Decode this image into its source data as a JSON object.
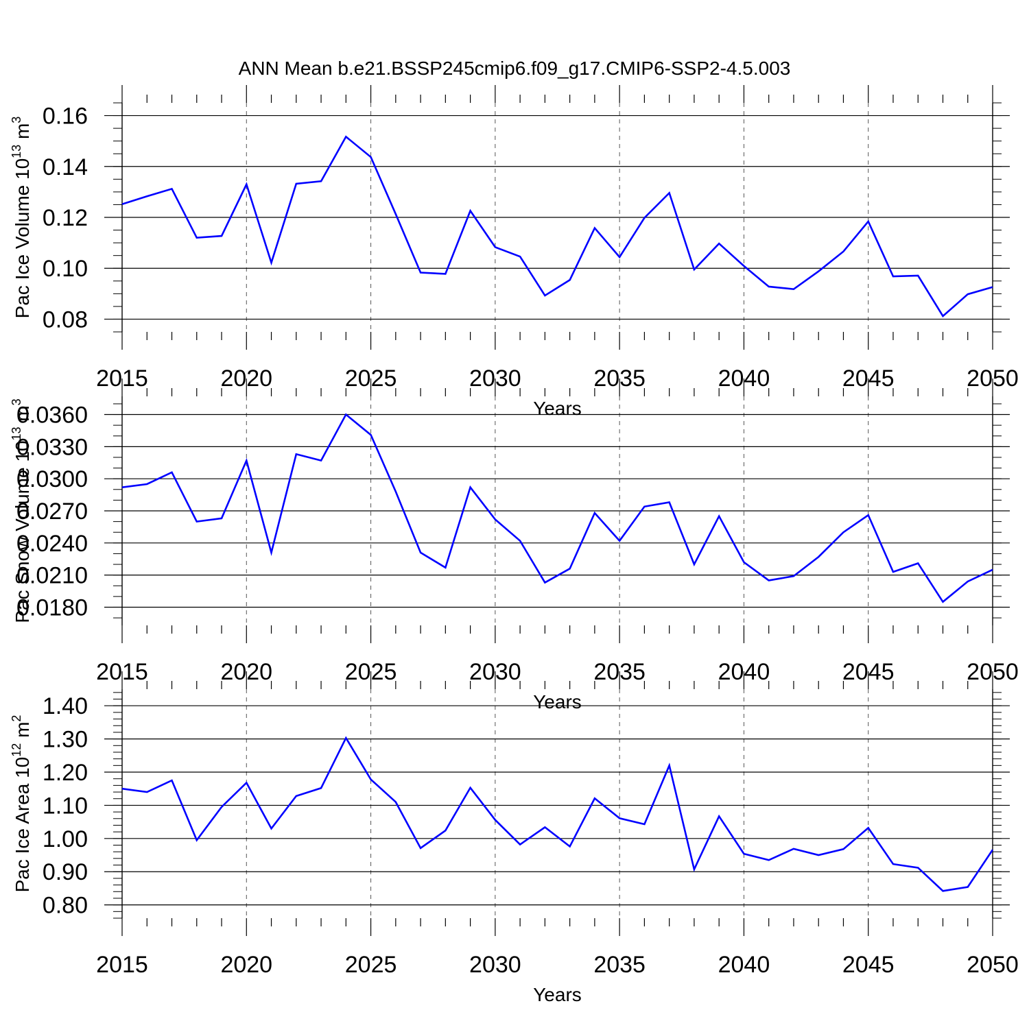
{
  "title": "ANN Mean b.e21.BSSP245cmip6.f09_g17.CMIP6-SSP2-4.5.003",
  "chart_data": [
    {
      "type": "line",
      "ylabel": "Pac Ice Volume 10",
      "ylabel_exp": "13",
      "ylabel_unit": " m",
      "ylabel_unit_exp": "3",
      "xlabel": "Years",
      "xlim": [
        2015,
        2050
      ],
      "ylim": [
        0.075,
        0.165
      ],
      "yticks": [
        0.08,
        0.1,
        0.12,
        0.14,
        0.16
      ],
      "yticklabels": [
        "0.08",
        "0.10",
        "0.12",
        "0.14",
        "0.16"
      ],
      "yminor_step": 0.005,
      "xticks": [
        2015,
        2020,
        2025,
        2030,
        2035,
        2040,
        2045,
        2050
      ],
      "xticklabels": [
        "2015",
        "2020",
        "2025",
        "2030",
        "2035",
        "2040",
        "2045",
        "2050"
      ],
      "line_color": "#0000ff",
      "x": [
        2015,
        2016,
        2017,
        2018,
        2019,
        2020,
        2021,
        2022,
        2023,
        2024,
        2025,
        2026,
        2027,
        2028,
        2029,
        2030,
        2031,
        2032,
        2033,
        2034,
        2035,
        2036,
        2037,
        2038,
        2039,
        2040,
        2041,
        2042,
        2043,
        2044,
        2045,
        2046,
        2047,
        2048,
        2049,
        2050
      ],
      "values": [
        0.1252,
        0.1283,
        0.1312,
        0.112,
        0.1127,
        0.133,
        0.1022,
        0.1332,
        0.1342,
        0.1517,
        0.1437,
        0.1213,
        0.0983,
        0.0978,
        0.1226,
        0.1083,
        0.1046,
        0.0893,
        0.0954,
        0.1158,
        0.1044,
        0.1198,
        0.1296,
        0.0995,
        0.1097,
        0.1009,
        0.0928,
        0.0918,
        0.0988,
        0.1066,
        0.1184,
        0.0968,
        0.0971,
        0.0812,
        0.0898,
        0.0926
      ]
    },
    {
      "type": "line",
      "ylabel": "Pac Snow Volume 10",
      "ylabel_exp": "13",
      "ylabel_unit": " m",
      "ylabel_unit_exp": "3",
      "xlabel": "Years",
      "xlim": [
        2015,
        2050
      ],
      "ylim": [
        0.0163,
        0.0377
      ],
      "yticks": [
        0.018,
        0.021,
        0.024,
        0.027,
        0.03,
        0.033,
        0.036
      ],
      "yticklabels": [
        "0.0180",
        "0.0210",
        "0.0240",
        "0.0270",
        "0.0300",
        "0.0330",
        "0.0360"
      ],
      "yminor_step": 0.001,
      "xticks": [
        2015,
        2020,
        2025,
        2030,
        2035,
        2040,
        2045,
        2050
      ],
      "xticklabels": [
        "2015",
        "2020",
        "2025",
        "2030",
        "2035",
        "2040",
        "2045",
        "2050"
      ],
      "line_color": "#0000ff",
      "x": [
        2015,
        2016,
        2017,
        2018,
        2019,
        2020,
        2021,
        2022,
        2023,
        2024,
        2025,
        2026,
        2027,
        2028,
        2029,
        2030,
        2031,
        2032,
        2033,
        2034,
        2035,
        2036,
        2037,
        2038,
        2039,
        2040,
        2041,
        2042,
        2043,
        2044,
        2045,
        2046,
        2047,
        2048,
        2049,
        2050
      ],
      "values": [
        0.0292,
        0.0295,
        0.0306,
        0.026,
        0.0263,
        0.0317,
        0.0231,
        0.0323,
        0.0317,
        0.036,
        0.0341,
        0.0288,
        0.0231,
        0.0217,
        0.0292,
        0.0262,
        0.0242,
        0.0203,
        0.0216,
        0.0268,
        0.0242,
        0.0274,
        0.0278,
        0.022,
        0.0265,
        0.0222,
        0.0205,
        0.0209,
        0.0227,
        0.025,
        0.0266,
        0.0213,
        0.0221,
        0.0185,
        0.0204,
        0.0215
      ]
    },
    {
      "type": "line",
      "ylabel": "Pac Ice Area 10",
      "ylabel_exp": "12",
      "ylabel_unit": " m",
      "ylabel_unit_exp": "2",
      "xlabel": "Years",
      "xlim": [
        2015,
        2050
      ],
      "ylim": [
        0.76,
        1.45
      ],
      "yticks": [
        0.8,
        0.9,
        1.0,
        1.1,
        1.2,
        1.3,
        1.4
      ],
      "yticklabels": [
        "0.80",
        "0.90",
        "1.00",
        "1.10",
        "1.20",
        "1.30",
        "1.40"
      ],
      "yminor_step": 0.02,
      "xticks": [
        2015,
        2020,
        2025,
        2030,
        2035,
        2040,
        2045,
        2050
      ],
      "xticklabels": [
        "2015",
        "2020",
        "2025",
        "2030",
        "2035",
        "2040",
        "2045",
        "2050"
      ],
      "line_color": "#0000ff",
      "x": [
        2015,
        2016,
        2017,
        2018,
        2019,
        2020,
        2021,
        2022,
        2023,
        2024,
        2025,
        2026,
        2027,
        2028,
        2029,
        2030,
        2031,
        2032,
        2033,
        2034,
        2035,
        2036,
        2037,
        2038,
        2039,
        2040,
        2041,
        2042,
        2043,
        2044,
        2045,
        2046,
        2047,
        2048,
        2049,
        2050
      ],
      "values": [
        1.15,
        1.14,
        1.175,
        0.995,
        1.095,
        1.168,
        1.03,
        1.128,
        1.152,
        1.303,
        1.178,
        1.11,
        0.971,
        1.024,
        1.153,
        1.056,
        0.982,
        1.034,
        0.976,
        1.121,
        1.061,
        1.043,
        1.22,
        0.907,
        1.067,
        0.954,
        0.935,
        0.969,
        0.95,
        0.968,
        1.032,
        0.923,
        0.912,
        0.842,
        0.854,
        0.966
      ]
    }
  ]
}
